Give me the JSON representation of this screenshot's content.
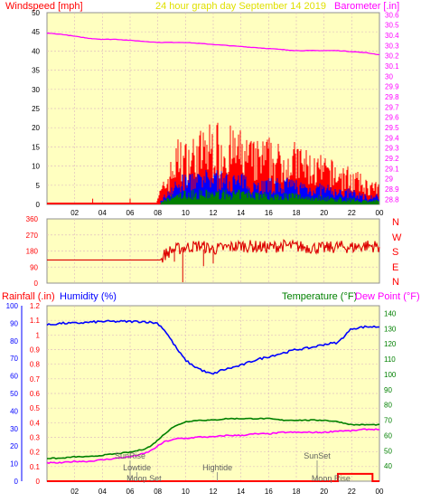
{
  "header": {
    "left_label": "Windspeed [mph]",
    "center_label": "24 hour graph day    September 14 2019",
    "right_label": "Barometer [.in]"
  },
  "mid_axis_compass": [
    "N",
    "W",
    "S",
    "E",
    "N"
  ],
  "bottom_header": {
    "rain_label": "Rainfall (.in)",
    "humidity_label": "Humidity (%)",
    "temp_label": "Temperature (°F)",
    "dew_label": "Dew Point (°F)"
  },
  "colors": {
    "plot_bg": "#ffffc0",
    "grid": "#e0c0c0",
    "wind": "#ff0000",
    "gust_blue": "#0000ff",
    "gust_green": "#008000",
    "barometer": "#ff00ff",
    "direction": "#dd0000",
    "humidity": "#0000ff",
    "temperature": "#008000",
    "dewpoint": "#ff00ff",
    "rain": "#ff0000",
    "border": "#909090"
  },
  "chart_data": [
    {
      "type": "line",
      "title": "24 hour graph day    September 14 2019",
      "x_ticks": [
        "02",
        "04",
        "06",
        "08",
        "10",
        "12",
        "14",
        "16",
        "18",
        "20",
        "22",
        "00"
      ],
      "ylabel_left": "Windspeed [mph]",
      "ylabel_right": "Barometer [.in]",
      "left_ylim": [
        0,
        50
      ],
      "left_ticks": [
        0,
        5,
        10,
        15,
        20,
        25,
        30,
        35,
        40,
        45,
        50
      ],
      "right_ylim": [
        28.75,
        30.62
      ],
      "right_ticks": [
        "28.8",
        "28.9",
        "29",
        "29.1",
        "29.2",
        "29.3",
        "29.4",
        "29.5",
        "29.6",
        "29.7",
        "29.8",
        "29.9",
        "30",
        "30.1",
        "30.2",
        "30.3",
        "30.4",
        "30.5",
        "30.6"
      ],
      "series": [
        {
          "name": "Barometer",
          "axis": "right",
          "x": [
            0,
            1,
            2,
            3,
            4,
            5,
            6,
            7,
            8,
            9,
            10,
            11,
            12,
            13,
            14,
            15,
            16,
            17,
            18,
            19,
            20,
            21,
            22,
            23,
            24
          ],
          "y": [
            30.42,
            30.41,
            30.39,
            30.37,
            30.36,
            30.36,
            30.35,
            30.34,
            30.33,
            30.33,
            30.33,
            30.32,
            30.31,
            30.3,
            30.29,
            30.28,
            30.27,
            30.26,
            30.25,
            30.25,
            30.25,
            30.25,
            30.24,
            30.23,
            30.21
          ]
        },
        {
          "name": "Wind gust",
          "axis": "left",
          "x": [
            0,
            7.8,
            8.0,
            8.5,
            9.0,
            9.5,
            10,
            11,
            12,
            13,
            14,
            15,
            16,
            17,
            18,
            19,
            20,
            21,
            22,
            23,
            24
          ],
          "y": [
            0,
            0,
            2,
            5,
            9,
            13,
            12,
            14,
            16,
            15,
            14,
            12,
            13,
            11,
            12,
            10,
            9,
            8,
            7,
            5,
            4
          ]
        },
        {
          "name": "Wind mid",
          "axis": "left",
          "x": [
            0,
            8.0,
            8.5,
            9.0,
            10,
            11,
            12,
            13,
            14,
            15,
            16,
            17,
            18,
            19,
            20,
            21,
            22,
            23,
            24
          ],
          "y": [
            0,
            0,
            2,
            4,
            6,
            6,
            7,
            6,
            6,
            5,
            5,
            5,
            5,
            4,
            4,
            3,
            3,
            2,
            2
          ]
        },
        {
          "name": "Wind average",
          "axis": "left",
          "x": [
            0,
            8.0,
            8.5,
            9.0,
            10,
            11,
            12,
            13,
            14,
            15,
            16,
            17,
            18,
            19,
            20,
            21,
            22,
            23,
            24
          ],
          "y": [
            0,
            0,
            1,
            2,
            3,
            3,
            3,
            3,
            3,
            3,
            2.5,
            2.5,
            2.5,
            2,
            2,
            1.5,
            1.5,
            1,
            1
          ]
        }
      ]
    },
    {
      "type": "line",
      "x_ticks": [
        "02",
        "04",
        "06",
        "08",
        "10",
        "12",
        "14",
        "16",
        "18",
        "20",
        "22",
        "00"
      ],
      "left_ylim": [
        0,
        360
      ],
      "left_ticks": [
        0,
        90,
        180,
        270,
        360
      ],
      "series": [
        {
          "name": "Wind direction",
          "x": [
            0,
            8.2,
            8.5,
            9,
            10,
            11,
            12,
            13,
            14,
            15,
            16,
            17,
            18,
            19,
            20,
            21,
            22,
            23,
            24
          ],
          "y": [
            130,
            130,
            160,
            185,
            200,
            210,
            190,
            200,
            210,
            205,
            200,
            210,
            205,
            200,
            195,
            205,
            200,
            210,
            205
          ]
        }
      ]
    },
    {
      "type": "line",
      "x_ticks": [
        "02",
        "04",
        "06",
        "08",
        "10",
        "12",
        "14",
        "16",
        "18",
        "20",
        "22",
        "00"
      ],
      "ylabel_left_outer": "Rainfall (.in)",
      "ylabel_left_inner": "Humidity (%)",
      "ylabel_right_inner": "Temperature (°F)",
      "ylabel_right_outer": "Dew Point (°F)",
      "rain_ylim": [
        0,
        1.2
      ],
      "rain_ticks": [
        "0",
        "0.1",
        "0.2",
        "0.3",
        "0.4",
        "0.5",
        "0.6",
        "0.7",
        "0.8",
        "0.9",
        "1",
        "1.1",
        "1.2"
      ],
      "humidity_ylim": [
        0,
        100
      ],
      "humidity_ticks": [
        0,
        10,
        20,
        30,
        40,
        50,
        60,
        70,
        80,
        90,
        100
      ],
      "temp_ylim": [
        30,
        145
      ],
      "temp_ticks": [
        40,
        50,
        60,
        70,
        80,
        90,
        100,
        110,
        120,
        130,
        140
      ],
      "series": [
        {
          "name": "Humidity",
          "axis": "humidity",
          "x": [
            0,
            1,
            2,
            4,
            6,
            7,
            8,
            8.5,
            9,
            9.5,
            10,
            10.5,
            11,
            11.5,
            12,
            12.5,
            13,
            14,
            15,
            16,
            17,
            18,
            19,
            20,
            21,
            21.5,
            22,
            23,
            24
          ],
          "y": [
            89,
            90,
            90,
            91,
            91,
            91,
            90,
            86,
            80,
            74,
            69,
            66,
            64,
            62,
            61,
            63,
            64,
            66,
            69,
            71,
            73,
            75,
            76,
            78,
            79,
            83,
            87,
            88,
            88
          ]
        },
        {
          "name": "Temperature",
          "axis": "temp",
          "x": [
            0,
            1,
            2,
            3,
            4,
            5,
            6,
            7,
            7.5,
            8,
            8.5,
            9,
            9.5,
            10,
            11,
            12,
            13,
            14,
            15,
            16,
            17,
            18,
            19,
            20,
            21,
            22,
            23,
            24
          ],
          "y": [
            45,
            45,
            46,
            46,
            47,
            48,
            49,
            51,
            53,
            57,
            61,
            65,
            67,
            69,
            70,
            70,
            71,
            71,
            71,
            71,
            70,
            70,
            70,
            70,
            69,
            67,
            67,
            67
          ]
        },
        {
          "name": "Dew Point",
          "axis": "temp",
          "x": [
            0,
            1,
            2,
            3,
            4,
            5,
            6,
            7,
            7.5,
            8,
            8.5,
            9,
            9.5,
            10,
            11,
            12,
            13,
            14,
            15,
            16,
            17,
            18,
            19,
            20,
            21,
            22,
            23,
            24
          ],
          "y": [
            42,
            42,
            43,
            43,
            44,
            45,
            46,
            48,
            50,
            53,
            56,
            57,
            58,
            58,
            59,
            59,
            60,
            60,
            61,
            61,
            62,
            62,
            62,
            62,
            63,
            63,
            64,
            64
          ]
        },
        {
          "name": "Rainfall",
          "axis": "rain",
          "x": [
            0,
            21,
            21.0,
            23.5,
            23.5,
            24
          ],
          "y": [
            0,
            0,
            0.05,
            0.05,
            0,
            0
          ]
        }
      ],
      "annotations": [
        {
          "text": "SunRise",
          "x": 6.0,
          "y_level": 1
        },
        {
          "text": "Lowtide",
          "x": 6.5,
          "y_level": 2
        },
        {
          "text": "Moon Set",
          "x": 7.0,
          "y_level": 3
        },
        {
          "text": "Hightide",
          "x": 12.3,
          "y_level": 2
        },
        {
          "text": "SunSet",
          "x": 19.5,
          "y_level": 1
        },
        {
          "text": "Moon Rise",
          "x": 20.5,
          "y_level": 3
        }
      ]
    }
  ]
}
